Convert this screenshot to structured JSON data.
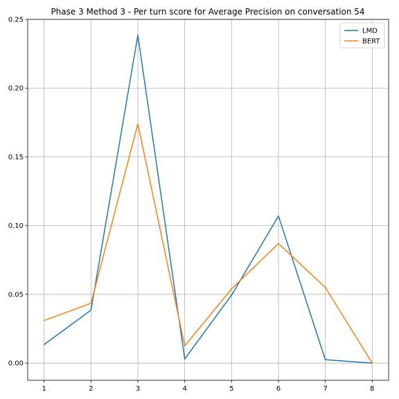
{
  "chart_data": {
    "type": "line",
    "title": "Phase 3 Method 3 - Per turn score for Average Precision on conversation 54",
    "xlabel": "",
    "ylabel": "",
    "x": [
      1,
      2,
      3,
      4,
      5,
      6,
      7,
      8
    ],
    "x_ticks": [
      "1",
      "2",
      "3",
      "4",
      "5",
      "6",
      "7",
      "8"
    ],
    "xlim": [
      0.65,
      8.35
    ],
    "ylim": [
      -0.0125,
      0.25
    ],
    "y_ticks": [
      "0.00",
      "0.05",
      "0.10",
      "0.15",
      "0.20",
      "0.25"
    ],
    "grid": true,
    "legend_position": "top-right",
    "series": [
      {
        "name": "LMD",
        "color": "#1f77b4",
        "values": [
          0.0135,
          0.0385,
          0.2385,
          0.003,
          0.0495,
          0.107,
          0.0025,
          0.0
        ]
      },
      {
        "name": "BERT",
        "color": "#ff7f0e",
        "values": [
          0.031,
          0.0435,
          0.174,
          0.0125,
          0.054,
          0.087,
          0.055,
          0.0
        ]
      }
    ]
  }
}
